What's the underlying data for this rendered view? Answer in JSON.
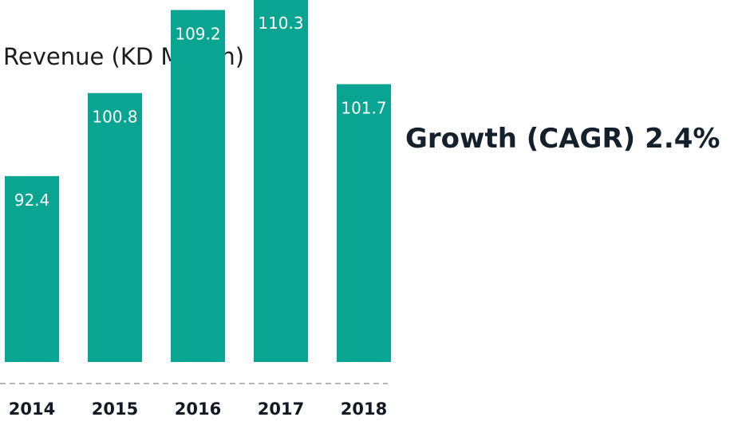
{
  "title": "Revenue (KD Million)",
  "growth": {
    "label": "Growth (CAGR)",
    "value": "2.4%"
  },
  "colors": {
    "bar": "#0aa592",
    "axis_dash": "#b5b5b5"
  },
  "chart_data": {
    "type": "bar",
    "title": "Revenue (KD Million)",
    "categories": [
      "2014",
      "2015",
      "2016",
      "2017",
      "2018"
    ],
    "values": [
      92.4,
      100.8,
      109.2,
      110.3,
      101.7
    ],
    "data_labels": [
      "92.4",
      "100.8",
      "109.2",
      "110.3",
      "101.7"
    ],
    "xlabel": "",
    "ylabel": "",
    "grid": false,
    "legend": "none"
  }
}
